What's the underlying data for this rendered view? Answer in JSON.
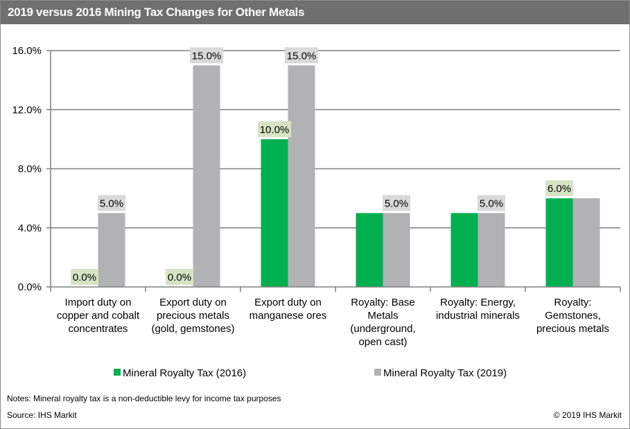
{
  "title": "2019 versus 2016 Mining Tax Changes for Other Metals",
  "notes": "Notes: Mineral royalty tax is a non-deductible levy for income tax purposes",
  "source": "Source: IHS Markit",
  "copyright": "© 2019 IHS Markit",
  "colors": {
    "series_2016": "#00b050",
    "series_2019": "#b2b2b5",
    "label_2016_bg": "#d6e4c4",
    "label_2019_bg": "#d9d9d9",
    "grid": "#7f7f7f",
    "title_bar": "#6f6f6f"
  },
  "chart_data": {
    "type": "bar",
    "categories": [
      [
        "Import duty on",
        "copper and cobalt",
        "concentrates"
      ],
      [
        "Export duty on",
        "precious metals",
        "(gold, gemstones)"
      ],
      [
        "Export duty on",
        "manganese ores"
      ],
      [
        "Royalty: Base",
        "Metals",
        "(underground,",
        "open cast)"
      ],
      [
        "Royalty: Energy,",
        "industrial minerals"
      ],
      [
        "Royalty:",
        "Gemstones,",
        "precious metals"
      ]
    ],
    "series": [
      {
        "name": "Mineral Royalty Tax (2016)",
        "values": [
          0.0,
          0.0,
          10.0,
          5.0,
          5.0,
          6.0
        ],
        "labels": [
          "0.0%",
          "0.0%",
          "10.0%",
          null,
          null,
          "6.0%"
        ]
      },
      {
        "name": "Mineral Royalty Tax (2019)",
        "values": [
          5.0,
          15.0,
          15.0,
          5.0,
          5.0,
          6.0
        ],
        "labels": [
          "5.0%",
          "15.0%",
          "15.0%",
          "5.0%",
          "5.0%",
          null
        ]
      }
    ],
    "yticks": [
      "0.0%",
      "4.0%",
      "8.0%",
      "12.0%",
      "16.0%"
    ],
    "ytick_values": [
      0,
      4,
      8,
      12,
      16
    ],
    "ylim": [
      0,
      16
    ],
    "grid": true,
    "legend": "bottom",
    "xlabel": "",
    "ylabel": ""
  }
}
